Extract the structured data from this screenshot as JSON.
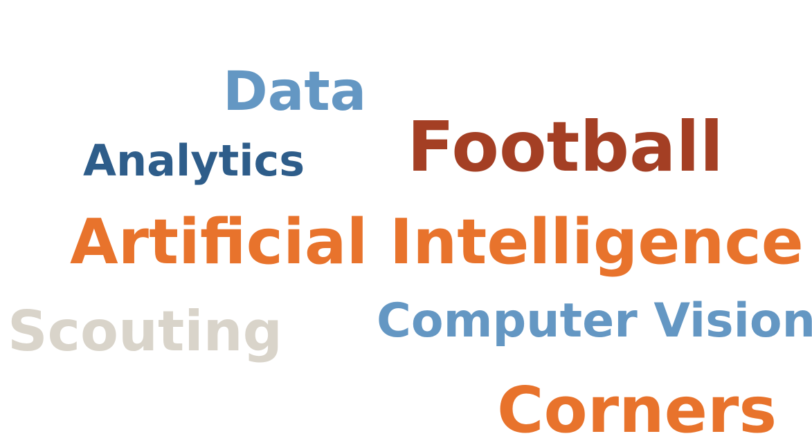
{
  "word_cloud": {
    "words": [
      {
        "text": "Data",
        "color": "#6497c3"
      },
      {
        "text": "Analytics",
        "color": "#2e5d8a"
      },
      {
        "text": "Football",
        "color": "#a43f24"
      },
      {
        "text": "Artificial Intelligence",
        "color": "#e8732c"
      },
      {
        "text": "Scouting",
        "color": "#d9d4ca"
      },
      {
        "text": "Computer Vision",
        "color": "#6497c3"
      },
      {
        "text": "Corners",
        "color": "#e8732c"
      }
    ]
  }
}
